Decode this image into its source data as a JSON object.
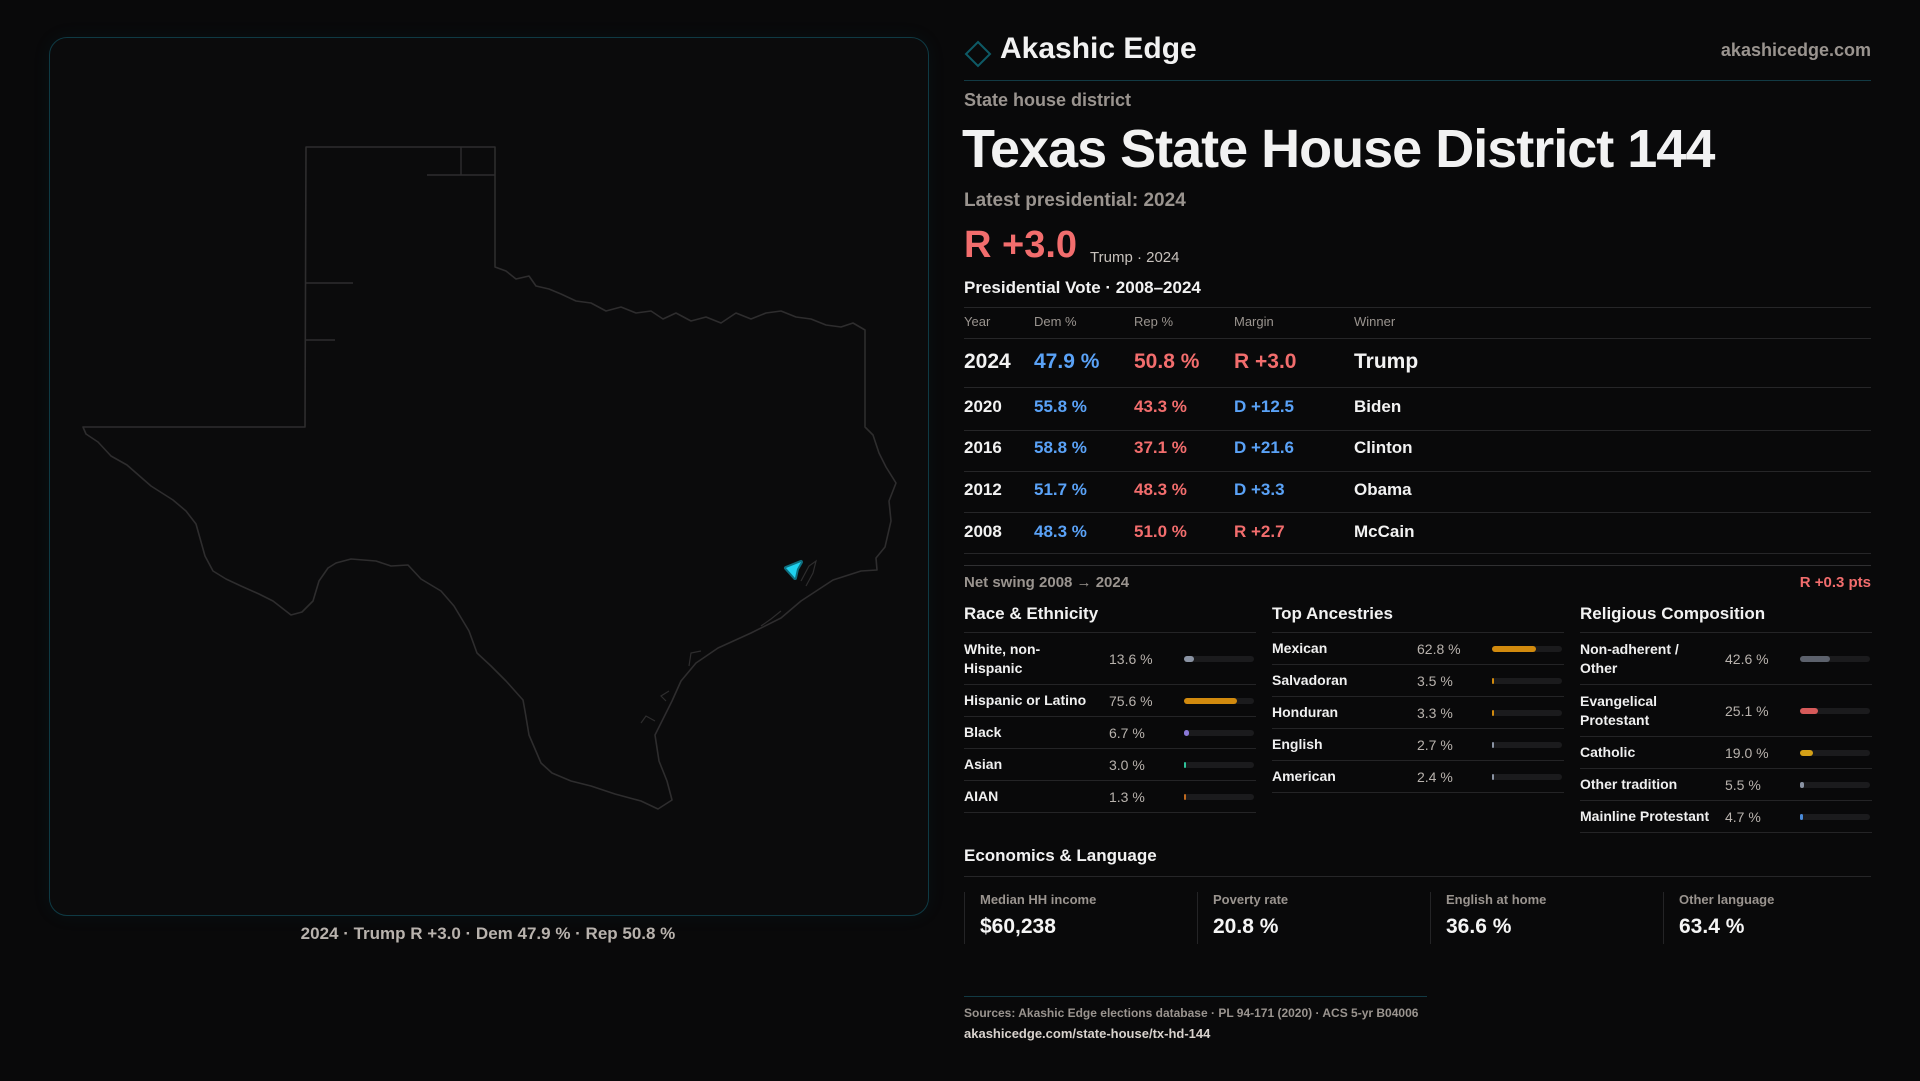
{
  "brand": {
    "name": "Akashic Edge",
    "site": "akashicedge.com",
    "accent": "#0e8fa3"
  },
  "header": {
    "kicker": "State house district",
    "title_state": "Texas",
    "title_district": "State House District 144",
    "latest_label": "Latest presidential: 2024",
    "margin": "R +3.0",
    "margin_sub": "Trump · 2024"
  },
  "colors": {
    "dem": "#5aa2f7",
    "rep": "#f26d6d"
  },
  "map": {
    "caption": "2024 · Trump R +3.0 · Dem 47.9 % · Rep 50.8 %",
    "highlight_color": "#1fd2f0"
  },
  "vote_table": {
    "title": "Presidential Vote · 2008–2024",
    "columns": [
      "Year",
      "Dem %",
      "Rep %",
      "Margin",
      "Winner"
    ],
    "rows": [
      {
        "year": "2024",
        "dem": "47.9 %",
        "rep": "50.8 %",
        "margin": "R +3.0",
        "party": "R",
        "winner": "Trump"
      },
      {
        "year": "2020",
        "dem": "55.8 %",
        "rep": "43.3 %",
        "margin": "D +12.5",
        "party": "D",
        "winner": "Biden"
      },
      {
        "year": "2016",
        "dem": "58.8 %",
        "rep": "37.1 %",
        "margin": "D +21.6",
        "party": "D",
        "winner": "Clinton"
      },
      {
        "year": "2012",
        "dem": "51.7 %",
        "rep": "48.3 %",
        "margin": "D +3.3",
        "party": "D",
        "winner": "Obama"
      },
      {
        "year": "2008",
        "dem": "48.3 %",
        "rep": "51.0 %",
        "margin": "R +2.7",
        "party": "R",
        "winner": "McCain"
      }
    ],
    "net_swing_label": "Net swing 2008 → 2024",
    "net_swing_value": "R +0.3 pts"
  },
  "race": {
    "title": "Race & Ethnicity",
    "items": [
      {
        "label": "White, non-Hispanic",
        "value": "13.6 %",
        "pct": 13.6,
        "color": "#8a93a3"
      },
      {
        "label": "Hispanic or Latino",
        "value": "75.6 %",
        "pct": 75.6,
        "color": "#d18a0e"
      },
      {
        "label": "Black",
        "value": "6.7 %",
        "pct": 6.7,
        "color": "#8a78d8"
      },
      {
        "label": "Asian",
        "value": "3.0 %",
        "pct": 3.0,
        "color": "#2fc29a"
      },
      {
        "label": "AIAN",
        "value": "1.3 %",
        "pct": 1.3,
        "color": "#c06a20"
      }
    ]
  },
  "ancestry": {
    "title": "Top Ancestries",
    "items": [
      {
        "label": "Mexican",
        "value": "62.8 %",
        "pct": 62.8,
        "color": "#d18a0e"
      },
      {
        "label": "Salvadoran",
        "value": "3.5 %",
        "pct": 3.5,
        "color": "#d18a0e"
      },
      {
        "label": "Honduran",
        "value": "3.3 %",
        "pct": 3.3,
        "color": "#d18a0e"
      },
      {
        "label": "English",
        "value": "2.7 %",
        "pct": 2.7,
        "color": "#8a93a3"
      },
      {
        "label": "American",
        "value": "2.4 %",
        "pct": 2.4,
        "color": "#8a93a3"
      }
    ]
  },
  "religion": {
    "title": "Religious Composition",
    "items": [
      {
        "label": "Non-adherent / Other",
        "value": "42.6 %",
        "pct": 42.6,
        "color": "#5c616c"
      },
      {
        "label": "Evangelical Protestant",
        "value": "25.1 %",
        "pct": 25.1,
        "color": "#d65a5a"
      },
      {
        "label": "Catholic",
        "value": "19.0 %",
        "pct": 19.0,
        "color": "#d4a017"
      },
      {
        "label": "Other tradition",
        "value": "5.5 %",
        "pct": 5.5,
        "color": "#8a93a3"
      },
      {
        "label": "Mainline Protestant",
        "value": "4.7 %",
        "pct": 4.7,
        "color": "#4a8ad8"
      }
    ]
  },
  "economics": {
    "title": "Economics & Language",
    "cards": [
      {
        "label": "Median HH income",
        "value": "$60,238"
      },
      {
        "label": "Poverty rate",
        "value": "20.8 %"
      },
      {
        "label": "English at home",
        "value": "36.6 %"
      },
      {
        "label": "Other language",
        "value": "63.4 %"
      }
    ]
  },
  "footer": {
    "sources": "Sources: Akashic Edge elections database · PL 94-171 (2020) · ACS 5-yr B04006",
    "url": "akashicedge.com/state-house/tx-hd-144"
  }
}
